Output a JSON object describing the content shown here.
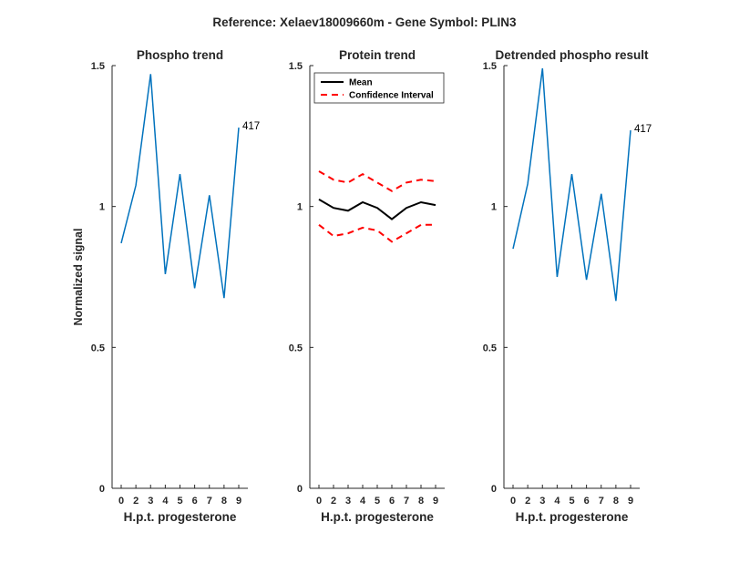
{
  "figure": {
    "suptitle": "Reference:  Xelaev18009660m - Gene Symbol:  PLIN3",
    "ylabel": "Normalized signal"
  },
  "chart_data": [
    {
      "type": "line",
      "title": "Phospho trend",
      "xlabel": "H.p.t. progesterone",
      "categories": [
        "0",
        "2",
        "3",
        "4",
        "5",
        "6",
        "7",
        "8",
        "9"
      ],
      "ylim": [
        0,
        1.5
      ],
      "yticks": [
        "0",
        "0.5",
        "1",
        "1.5"
      ],
      "series": [
        {
          "name": "Phospho",
          "color": "#0072BD",
          "dash": "",
          "width": 1.5,
          "values": [
            0.87,
            1.075,
            1.47,
            0.76,
            1.115,
            0.71,
            1.04,
            0.675,
            1.28
          ]
        }
      ],
      "annotation": "417"
    },
    {
      "type": "line",
      "title": "Protein trend",
      "xlabel": "H.p.t. progesterone",
      "categories": [
        "0",
        "2",
        "3",
        "4",
        "5",
        "6",
        "7",
        "8",
        "9"
      ],
      "ylim": [
        0,
        1.5
      ],
      "yticks": [
        "0",
        "0.5",
        "1",
        "1.5"
      ],
      "series": [
        {
          "name": "Mean",
          "color": "#000000",
          "dash": "",
          "width": 2,
          "values": [
            1.025,
            0.995,
            0.985,
            1.015,
            0.995,
            0.955,
            0.995,
            1.015,
            1.005
          ]
        },
        {
          "name": "Confidence Interval",
          "color": "#FF0000",
          "dash": "7,5",
          "width": 2,
          "values": [
            1.125,
            1.095,
            1.085,
            1.115,
            1.085,
            1.055,
            1.085,
            1.095,
            1.09
          ]
        },
        {
          "name": "Confidence Interval lower",
          "color": "#FF0000",
          "dash": "7,5",
          "width": 2,
          "values": [
            0.935,
            0.895,
            0.905,
            0.925,
            0.915,
            0.875,
            0.905,
            0.935,
            0.935
          ]
        }
      ],
      "legend": {
        "position": "top-left",
        "entries": [
          {
            "label": "Mean",
            "color": "#000000",
            "dash": ""
          },
          {
            "label": "Confidence Interval",
            "color": "#FF0000",
            "dash": "7,5"
          }
        ]
      }
    },
    {
      "type": "line",
      "title": "Detrended phospho result",
      "xlabel": "H.p.t. progesterone",
      "categories": [
        "0",
        "2",
        "3",
        "4",
        "5",
        "6",
        "7",
        "8",
        "9"
      ],
      "ylim": [
        0,
        1.5
      ],
      "yticks": [
        "0",
        "0.5",
        "1",
        "1.5"
      ],
      "series": [
        {
          "name": "Detrended",
          "color": "#0072BD",
          "dash": "",
          "width": 1.5,
          "values": [
            0.85,
            1.08,
            1.49,
            0.75,
            1.115,
            0.74,
            1.045,
            0.665,
            1.27
          ]
        }
      ],
      "annotation": "417"
    }
  ]
}
